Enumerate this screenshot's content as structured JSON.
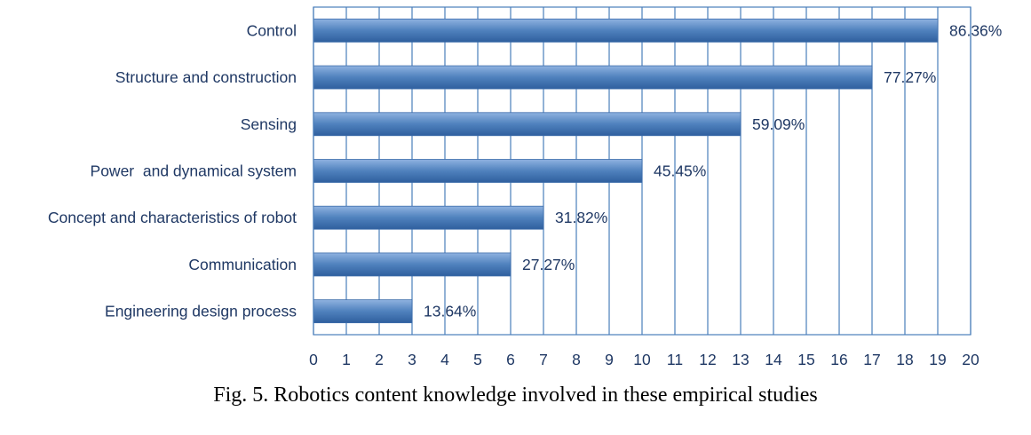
{
  "chart_data": {
    "type": "bar",
    "orientation": "horizontal",
    "categories": [
      "Control",
      "Structure and construction",
      "Sensing",
      "Power  and dynamical system",
      "Concept and characteristics of robot",
      "Communication",
      "Engineering design process"
    ],
    "values": [
      19,
      17,
      13,
      10,
      7,
      6,
      3
    ],
    "data_labels": [
      "86.36%",
      "77.27%",
      "59.09%",
      "45.45%",
      "31.82%",
      "27.27%",
      "13.64%"
    ],
    "xlim": [
      0,
      20
    ],
    "x_ticks": [
      "0",
      "1",
      "2",
      "3",
      "4",
      "5",
      "6",
      "7",
      "8",
      "9",
      "10",
      "11",
      "12",
      "13",
      "14",
      "15",
      "16",
      "17",
      "18",
      "19",
      "20"
    ],
    "grid": true,
    "legend": "none",
    "colors": {
      "bar_top": "#8fb2e0",
      "bar_mid": "#4f81bd",
      "bar_bottom": "#2f5f9e",
      "grid": "#4a7ebb",
      "text": "#1f3864"
    }
  },
  "caption": "Fig. 5. Robotics content knowledge involved in these empirical studies"
}
